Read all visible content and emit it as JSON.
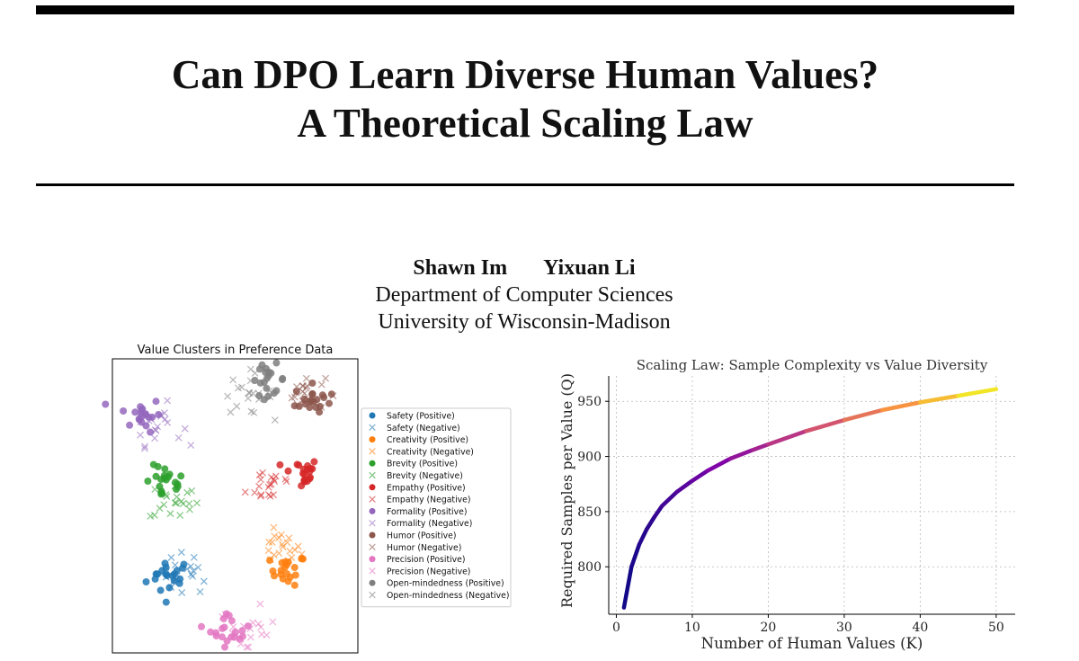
{
  "paper": {
    "title_line1": "Can DPO Learn Diverse Human Values?",
    "title_line2": "A Theoretical Scaling Law",
    "authors": [
      "Shawn Im",
      "Yixuan Li"
    ],
    "department": "Department of Computer Sciences",
    "university": "University of Wisconsin-Madison"
  },
  "chart_data": [
    {
      "type": "scatter",
      "title": "Value Clusters in Preference Data",
      "legend_position": "right-outside",
      "axes_visible": false,
      "series": [
        {
          "name": "Safety (Positive)",
          "color": "#1f77b4",
          "marker": "circle",
          "center": [
            -2.0,
            -2.1
          ],
          "spread": 0.28
        },
        {
          "name": "Safety (Negative)",
          "color": "#1f77b4",
          "marker": "x",
          "center": [
            -1.6,
            -2.0
          ],
          "spread": 0.3
        },
        {
          "name": "Creativity (Positive)",
          "color": "#ff7f0e",
          "marker": "circle",
          "center": [
            0.9,
            -1.9
          ],
          "spread": 0.22
        },
        {
          "name": "Creativity (Negative)",
          "color": "#ff7f0e",
          "marker": "x",
          "center": [
            0.7,
            -1.3
          ],
          "spread": 0.25
        },
        {
          "name": "Brevity (Positive)",
          "color": "#2ca02c",
          "marker": "circle",
          "center": [
            -2.1,
            0.6
          ],
          "spread": 0.25
        },
        {
          "name": "Brevity (Negative)",
          "color": "#2ca02c",
          "marker": "x",
          "center": [
            -1.9,
            0.1
          ],
          "spread": 0.3
        },
        {
          "name": "Empathy (Positive)",
          "color": "#d62728",
          "marker": "circle",
          "center": [
            1.2,
            0.9
          ],
          "spread": 0.22
        },
        {
          "name": "Empathy (Negative)",
          "color": "#d62728",
          "marker": "x",
          "center": [
            0.5,
            0.6
          ],
          "spread": 0.3
        },
        {
          "name": "Formality (Positive)",
          "color": "#9467bd",
          "marker": "circle",
          "center": [
            -2.7,
            2.6
          ],
          "spread": 0.25
        },
        {
          "name": "Formality (Negative)",
          "color": "#9467bd",
          "marker": "x",
          "center": [
            -2.3,
            2.3
          ],
          "spread": 0.3
        },
        {
          "name": "Humor (Positive)",
          "color": "#8c564b",
          "marker": "circle",
          "center": [
            1.5,
            3.0
          ],
          "spread": 0.22
        },
        {
          "name": "Humor (Negative)",
          "color": "#8c564b",
          "marker": "x",
          "center": [
            1.3,
            3.2
          ],
          "spread": 0.25
        },
        {
          "name": "Precision (Positive)",
          "color": "#e377c2",
          "marker": "circle",
          "center": [
            -0.5,
            -3.6
          ],
          "spread": 0.25
        },
        {
          "name": "Precision (Negative)",
          "color": "#e377c2",
          "marker": "x",
          "center": [
            -0.1,
            -3.7
          ],
          "spread": 0.35
        },
        {
          "name": "Open-mindedness (Positive)",
          "color": "#7f7f7f",
          "marker": "circle",
          "center": [
            0.4,
            3.6
          ],
          "spread": 0.22
        },
        {
          "name": "Open-mindedness (Negative)",
          "color": "#7f7f7f",
          "marker": "x",
          "center": [
            -0.1,
            3.2
          ],
          "spread": 0.3
        }
      ]
    },
    {
      "type": "line",
      "title": "Scaling Law: Sample Complexity vs Value Diversity",
      "xlabel": "Number of Human Values (K)",
      "ylabel": "Required Samples per Value (Q)",
      "xlim": [
        -1,
        52.5
      ],
      "ylim": [
        757,
        973
      ],
      "xticks": [
        0,
        10,
        20,
        30,
        40,
        50
      ],
      "yticks": [
        800,
        850,
        900,
        950
      ],
      "grid": true,
      "colormap": "plasma",
      "series": [
        {
          "x": [
            1,
            2,
            3,
            4,
            5,
            6,
            8,
            10,
            12,
            15,
            18,
            20,
            25,
            30,
            35,
            40,
            45,
            50
          ],
          "y": [
            763,
            800,
            820,
            834,
            845,
            855,
            868,
            878,
            887,
            898,
            906,
            911,
            923,
            933,
            942,
            949,
            955,
            961
          ]
        }
      ]
    }
  ]
}
